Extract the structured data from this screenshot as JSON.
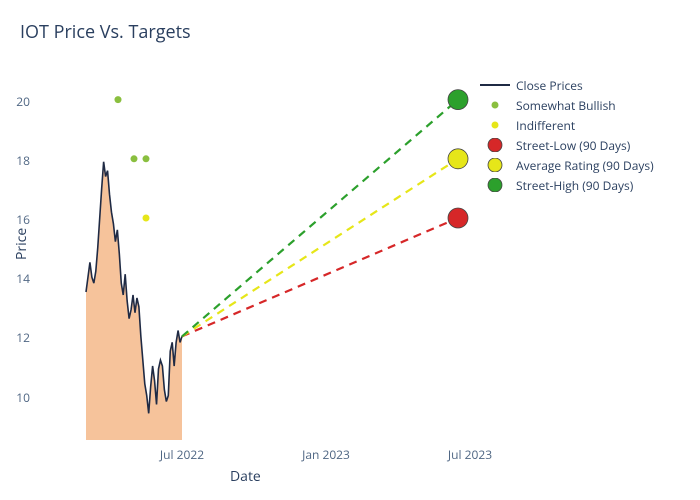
{
  "title": "IOT Price Vs. Targets",
  "xlabel": "Date",
  "ylabel": "Price",
  "ylim": [
    8.5,
    21
  ],
  "yticks": [
    10,
    12,
    14,
    16,
    18,
    20
  ],
  "xticks": [
    {
      "label": "Jul 2022",
      "t": 0.28
    },
    {
      "label": "Jan 2023",
      "t": 0.64
    },
    {
      "label": "Jul 2023",
      "t": 1.0
    }
  ],
  "colors": {
    "text": "#2a3f5f",
    "tick": "#506784",
    "close_line": "#1f2a44",
    "area_fill": "#f5b88a",
    "bullish": "#8abf3f",
    "indifferent": "#e6e619",
    "street_low": "#d62728",
    "avg_rating": "#e6e619",
    "street_high": "#2ca02c"
  },
  "close_series": {
    "t_start": 0.04,
    "t_end": 0.28,
    "values": [
      13.5,
      14,
      14.5,
      14,
      13.8,
      14.2,
      15,
      16,
      17,
      17.9,
      17.4,
      17.6,
      16.8,
      16.2,
      15.8,
      15.2,
      15.6,
      14.8,
      13.8,
      13.4,
      14.1,
      13.2,
      12.6,
      12.9,
      13.4,
      12.8,
      13.3,
      13.0,
      12.0,
      11.2,
      10.4,
      10.0,
      9.4,
      10.3,
      11.0,
      10.5,
      9.7,
      10.9,
      11.2,
      11.0,
      10.2,
      9.8,
      10.0,
      11.5,
      11.8,
      11.0,
      11.8,
      12.2,
      11.8,
      12.0
    ]
  },
  "ratings": [
    {
      "type": "bullish",
      "t": 0.12,
      "price": 20
    },
    {
      "type": "bullish",
      "t": 0.16,
      "price": 18
    },
    {
      "type": "bullish",
      "t": 0.19,
      "price": 18
    },
    {
      "type": "indifferent",
      "t": 0.19,
      "price": 16
    }
  ],
  "projections": {
    "from": {
      "t": 0.28,
      "price": 12.0
    },
    "to_t": 0.97,
    "low": 16,
    "avg": 18,
    "high": 20
  },
  "target_marker_r": 10,
  "rating_marker_r": 3.5,
  "legend": [
    {
      "kind": "line",
      "label": "Close Prices",
      "colorKey": "close_line"
    },
    {
      "kind": "dot-sm",
      "label": "Somewhat Bullish",
      "colorKey": "bullish"
    },
    {
      "kind": "dot-sm",
      "label": "Indifferent",
      "colorKey": "indifferent"
    },
    {
      "kind": "dot-lg",
      "label": "Street-Low (90 Days)",
      "colorKey": "street_low"
    },
    {
      "kind": "dot-lg",
      "label": "Average Rating (90 Days)",
      "colorKey": "avg_rating"
    },
    {
      "kind": "dot-lg",
      "label": "Street-High (90 Days)",
      "colorKey": "street_high"
    }
  ]
}
